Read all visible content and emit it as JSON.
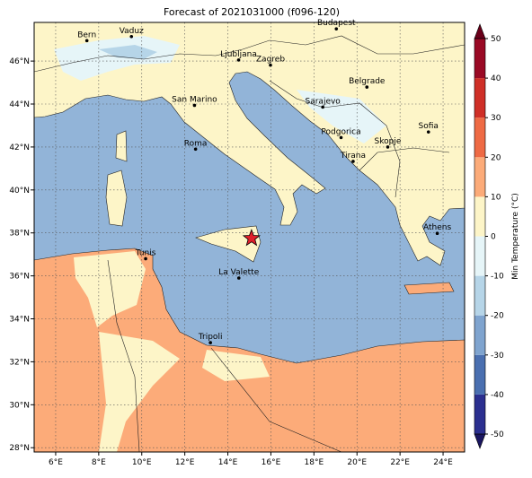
{
  "map": {
    "type": "map",
    "title": "Forecast of 2021031000 (f096-120)",
    "xlim": [
      5,
      25
    ],
    "ylim": [
      27.8,
      47.8
    ],
    "xticks": [
      {
        "value": 6,
        "label": "6°E"
      },
      {
        "value": 8,
        "label": "8°E"
      },
      {
        "value": 10,
        "label": "10°E"
      },
      {
        "value": 12,
        "label": "12°E"
      },
      {
        "value": 14,
        "label": "14°E"
      },
      {
        "value": 16,
        "label": "16°E"
      },
      {
        "value": 18,
        "label": "18°E"
      },
      {
        "value": 20,
        "label": "20°E"
      },
      {
        "value": 22,
        "label": "22°E"
      },
      {
        "value": 24,
        "label": "24°E"
      }
    ],
    "yticks": [
      {
        "value": 28,
        "label": "28°N"
      },
      {
        "value": 30,
        "label": "30°N"
      },
      {
        "value": 32,
        "label": "32°N"
      },
      {
        "value": 34,
        "label": "34°N"
      },
      {
        "value": 36,
        "label": "36°N"
      },
      {
        "value": 38,
        "label": "38°N"
      },
      {
        "value": 40,
        "label": "40°N"
      },
      {
        "value": 42,
        "label": "42°N"
      },
      {
        "value": 44,
        "label": "44°N"
      },
      {
        "value": 46,
        "label": "46°N"
      }
    ],
    "cities": [
      {
        "name": "Bern",
        "lon": 7.45,
        "lat": 46.95
      },
      {
        "name": "Vaduz",
        "lon": 9.52,
        "lat": 47.14
      },
      {
        "name": "Budapest",
        "lon": 19.04,
        "lat": 47.5
      },
      {
        "name": "Ljubljana",
        "lon": 14.5,
        "lat": 46.05
      },
      {
        "name": "Zagreb",
        "lon": 15.98,
        "lat": 45.81
      },
      {
        "name": "Belgrade",
        "lon": 20.46,
        "lat": 44.79
      },
      {
        "name": "San Marino",
        "lon": 12.45,
        "lat": 43.94
      },
      {
        "name": "Sarajevo",
        "lon": 18.41,
        "lat": 43.86
      },
      {
        "name": "Sofia",
        "lon": 23.32,
        "lat": 42.7
      },
      {
        "name": "Podgorica",
        "lon": 19.26,
        "lat": 42.44
      },
      {
        "name": "Skopje",
        "lon": 21.43,
        "lat": 42.0
      },
      {
        "name": "Roma",
        "lon": 12.5,
        "lat": 41.9
      },
      {
        "name": "Tirana",
        "lon": 19.82,
        "lat": 41.33
      },
      {
        "name": "Athens",
        "lon": 23.73,
        "lat": 37.98
      },
      {
        "name": "Tunis",
        "lon": 10.18,
        "lat": 36.8
      },
      {
        "name": "La Valette",
        "lon": 14.51,
        "lat": 35.9
      },
      {
        "name": "Tripoli",
        "lon": 13.19,
        "lat": 32.89
      }
    ],
    "marker": {
      "lon": 15.1,
      "lat": 37.75,
      "color": "#e0202a"
    },
    "colorbar": {
      "label": "Min Temperature (°C)",
      "lim": [
        -50,
        50
      ],
      "ticks": [
        -50,
        -40,
        -30,
        -20,
        -10,
        0,
        10,
        20,
        30,
        40,
        50
      ],
      "colors": [
        "#2b2f8f",
        "#4a6fb0",
        "#7fa4cf",
        "#b6d5e8",
        "#e6f5f8",
        "#fdf5c8",
        "#fcab79",
        "#ee6a44",
        "#cf2f27",
        "#9a0a25"
      ],
      "under": "#1a1660",
      "over": "#6a001a"
    }
  }
}
